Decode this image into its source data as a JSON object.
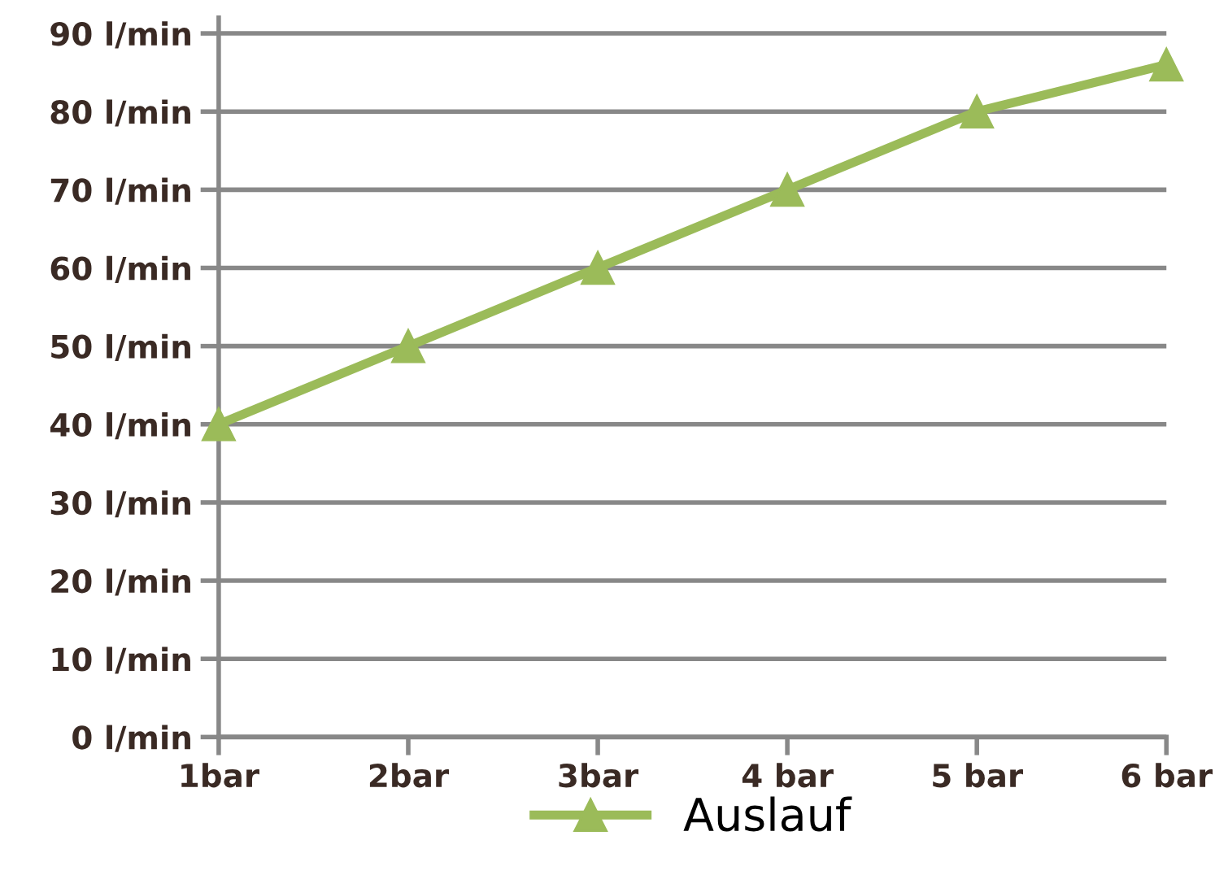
{
  "chart_data": {
    "type": "line",
    "categories": [
      "1bar",
      "2bar",
      "3bar",
      "4 bar",
      "5 bar",
      "6 bar"
    ],
    "series": [
      {
        "name": "Auslauf",
        "color": "#9bbb59",
        "values": [
          40,
          50,
          60,
          70,
          80,
          86
        ]
      }
    ],
    "ylim": [
      0,
      92
    ],
    "yticks": [
      {
        "value": 0,
        "label": "0 l/min"
      },
      {
        "value": 10,
        "label": "10 l/min"
      },
      {
        "value": 20,
        "label": "20 l/min"
      },
      {
        "value": 30,
        "label": "30 l/min"
      },
      {
        "value": 40,
        "label": "40 l/min"
      },
      {
        "value": 50,
        "label": "50 l/min"
      },
      {
        "value": 60,
        "label": "60 l/min"
      },
      {
        "value": 70,
        "label": "70 l/min"
      },
      {
        "value": 80,
        "label": "80 l/min"
      },
      {
        "value": 90,
        "label": "90 l/min"
      }
    ],
    "grid": "y",
    "legend": "bottom",
    "marker": "triangle",
    "line_style": "solid"
  }
}
